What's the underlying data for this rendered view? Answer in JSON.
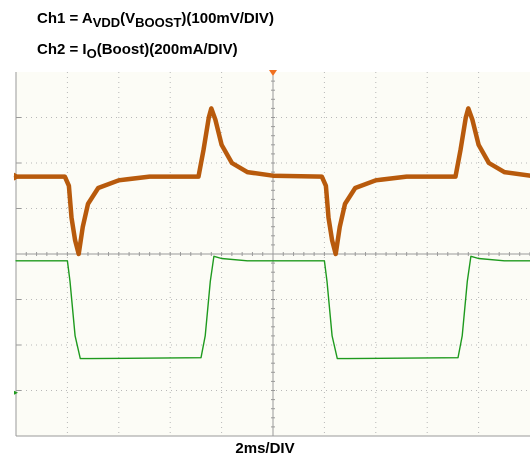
{
  "labels": {
    "ch1_prefix": "Ch1 = A",
    "ch1_sub1": "VDD",
    "ch1_mid": "(V",
    "ch1_sub2": "BOOST",
    "ch1_suffix": ")(100mV/DIV)",
    "ch2_prefix": "Ch2 = I",
    "ch2_sub": "O",
    "ch2_suffix": "(Boost)(200mA/DIV)",
    "timebase": "2ms/DIV"
  },
  "colors": {
    "ch1": "#b85a0c",
    "ch2": "#1e9a1e",
    "screen_bg": "#fcfcf6",
    "grid": "#b8b8b8",
    "marker": "#f07020"
  },
  "chart_data": {
    "type": "line",
    "grid": true,
    "xlim": [
      0,
      10
    ],
    "ylim": [
      -4,
      4
    ],
    "x_unit_divisions": 10,
    "y_unit_divisions": 8,
    "series": [
      {
        "points": [
          [
            0,
            1.7
          ],
          [
            0.95,
            1.7
          ],
          [
            1.03,
            1.5
          ],
          [
            1.08,
            0.8
          ],
          [
            1.15,
            0.3
          ],
          [
            1.22,
            0.0
          ],
          [
            1.3,
            0.6
          ],
          [
            1.4,
            1.1
          ],
          [
            1.6,
            1.45
          ],
          [
            2.0,
            1.62
          ],
          [
            2.6,
            1.7
          ],
          [
            3.55,
            1.7
          ],
          [
            3.65,
            2.3
          ],
          [
            3.75,
            3.0
          ],
          [
            3.8,
            3.2
          ],
          [
            3.88,
            2.95
          ],
          [
            4.0,
            2.4
          ],
          [
            4.2,
            2.0
          ],
          [
            4.5,
            1.8
          ],
          [
            5.0,
            1.72
          ],
          [
            5.95,
            1.7
          ],
          [
            6.03,
            1.5
          ],
          [
            6.08,
            0.8
          ],
          [
            6.15,
            0.3
          ],
          [
            6.22,
            0.0
          ],
          [
            6.3,
            0.6
          ],
          [
            6.4,
            1.1
          ],
          [
            6.6,
            1.45
          ],
          [
            7.0,
            1.62
          ],
          [
            7.6,
            1.7
          ],
          [
            8.55,
            1.7
          ],
          [
            8.65,
            2.3
          ],
          [
            8.75,
            3.0
          ],
          [
            8.8,
            3.2
          ],
          [
            8.88,
            2.95
          ],
          [
            9.0,
            2.4
          ],
          [
            9.2,
            2.0
          ],
          [
            9.5,
            1.8
          ],
          [
            10.0,
            1.72
          ]
        ]
      },
      {
        "points": [
          [
            0,
            -0.15
          ],
          [
            1.0,
            -0.15
          ],
          [
            1.05,
            -0.6
          ],
          [
            1.15,
            -1.8
          ],
          [
            1.25,
            -2.3
          ],
          [
            1.45,
            -2.3
          ],
          [
            3.6,
            -2.28
          ],
          [
            3.68,
            -1.8
          ],
          [
            3.78,
            -0.6
          ],
          [
            3.85,
            -0.05
          ],
          [
            4.0,
            -0.1
          ],
          [
            4.5,
            -0.15
          ],
          [
            6.0,
            -0.15
          ],
          [
            6.05,
            -0.6
          ],
          [
            6.15,
            -1.8
          ],
          [
            6.25,
            -2.3
          ],
          [
            6.45,
            -2.3
          ],
          [
            8.6,
            -2.28
          ],
          [
            8.68,
            -1.8
          ],
          [
            8.78,
            -0.6
          ],
          [
            8.85,
            -0.05
          ],
          [
            9.0,
            -0.1
          ],
          [
            9.5,
            -0.15
          ],
          [
            10.0,
            -0.15
          ]
        ]
      }
    ]
  }
}
